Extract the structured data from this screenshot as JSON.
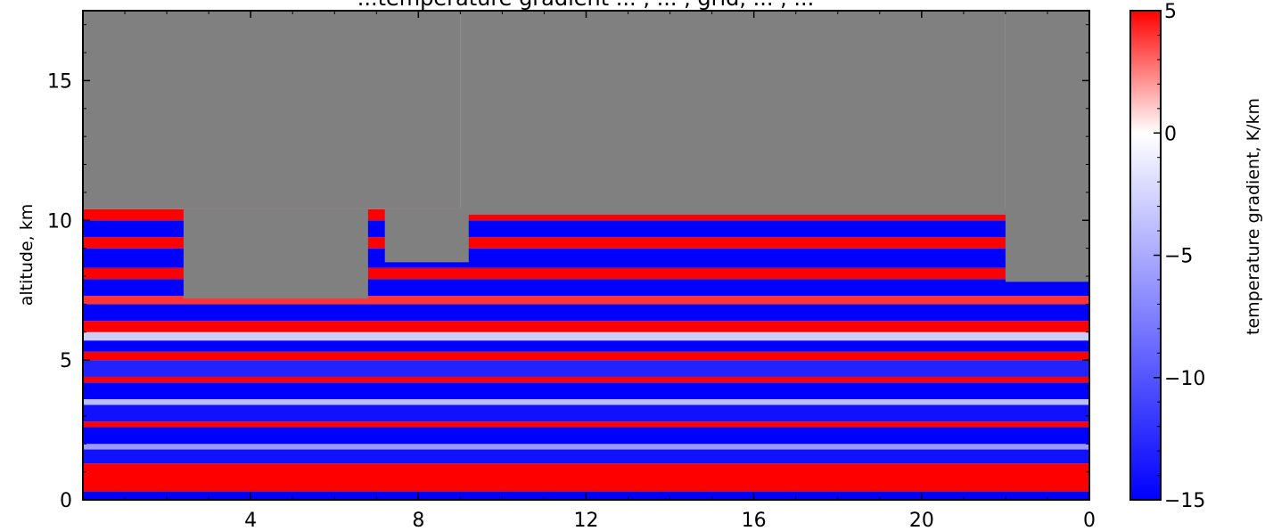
{
  "chart_data": {
    "type": "heatmap",
    "title": "...temperature gradient ... , ... , grid, ... , ...",
    "xlabel": "",
    "ylabel": "altitude, km",
    "x_ticks": [
      "4",
      "8",
      "12",
      "16",
      "20",
      "0"
    ],
    "x_tick_values": [
      4,
      8,
      12,
      16,
      20,
      24
    ],
    "xlim": [
      0,
      24
    ],
    "y_ticks": [
      "0",
      "5",
      "10",
      "15"
    ],
    "y_tick_values": [
      0,
      5,
      10,
      15
    ],
    "ylim": [
      0,
      17.5
    ],
    "missing_color": "#808080",
    "colorbar": {
      "label": "temperature gradient, K/km",
      "ticks": [
        "5",
        "0",
        "−5",
        "−10",
        "−15"
      ],
      "tick_values": [
        5,
        0,
        -5,
        -10,
        -15
      ],
      "range": [
        -15,
        5
      ],
      "colors": {
        "min": "#0000ff",
        "mid": "#ffffff",
        "max": "#ff0000"
      }
    },
    "bands": [
      {
        "y0": 0.0,
        "y1": 0.3,
        "value": -15
      },
      {
        "y0": 0.3,
        "y1": 1.3,
        "value": 5
      },
      {
        "y0": 1.3,
        "y1": 1.8,
        "value": -14
      },
      {
        "y0": 1.8,
        "y1": 2.0,
        "value": -6
      },
      {
        "y0": 2.0,
        "y1": 2.6,
        "value": -15
      },
      {
        "y0": 2.6,
        "y1": 2.8,
        "value": 5
      },
      {
        "y0": 2.8,
        "y1": 3.4,
        "value": -14
      },
      {
        "y0": 3.4,
        "y1": 3.6,
        "value": -4
      },
      {
        "y0": 3.6,
        "y1": 4.2,
        "value": -15
      },
      {
        "y0": 4.2,
        "y1": 4.4,
        "value": 5
      },
      {
        "y0": 4.4,
        "y1": 5.0,
        "value": -13
      },
      {
        "y0": 5.0,
        "y1": 5.3,
        "value": 5
      },
      {
        "y0": 5.3,
        "y1": 5.7,
        "value": -15
      },
      {
        "y0": 5.7,
        "y1": 6.0,
        "value": -3
      },
      {
        "y0": 6.0,
        "y1": 6.4,
        "value": 5
      },
      {
        "y0": 6.4,
        "y1": 7.0,
        "value": -15
      },
      {
        "y0": 7.0,
        "y1": 7.3,
        "value": 4
      },
      {
        "y0": 7.3,
        "y1": 7.9,
        "value": -15
      },
      {
        "y0": 7.9,
        "y1": 8.3,
        "value": 5
      },
      {
        "y0": 8.3,
        "y1": 9.0,
        "value": -15
      },
      {
        "y0": 9.0,
        "y1": 9.4,
        "value": 5
      },
      {
        "y0": 9.4,
        "y1": 10.0,
        "value": -15
      },
      {
        "y0": 10.0,
        "y1": 10.4,
        "value": 5
      }
    ],
    "missing_regions": [
      {
        "x0": 0.0,
        "x1": 9.0,
        "y0": 10.4,
        "y1": 17.5
      },
      {
        "x0": 2.4,
        "x1": 6.8,
        "y0": 7.2,
        "y1": 10.4
      },
      {
        "x0": 7.2,
        "x1": 9.2,
        "y0": 8.5,
        "y1": 10.4
      },
      {
        "x0": 9.0,
        "x1": 22.0,
        "y0": 10.2,
        "y1": 17.5
      },
      {
        "x0": 22.0,
        "x1": 24.0,
        "y0": 7.8,
        "y1": 17.5
      }
    ]
  }
}
